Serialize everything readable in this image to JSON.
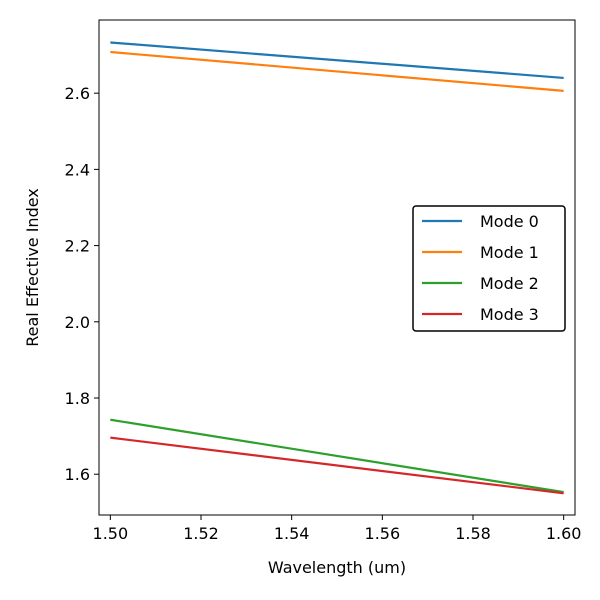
{
  "chart_data": {
    "type": "line",
    "title": "",
    "xlabel": "Wavelength (um)",
    "ylabel": "Real Effective Index",
    "xlim": [
      1.4975,
      1.6025
    ],
    "ylim": [
      1.493,
      2.792
    ],
    "xticks": [
      1.5,
      1.52,
      1.54,
      1.56,
      1.58,
      1.6
    ],
    "xtick_labels": [
      "1.50",
      "1.52",
      "1.54",
      "1.56",
      "1.58",
      "1.60"
    ],
    "yticks": [
      1.6,
      1.8,
      2.0,
      2.2,
      2.4,
      2.6
    ],
    "ytick_labels": [
      "1.6",
      "1.8",
      "2.0",
      "2.2",
      "2.4",
      "2.6"
    ],
    "grid": false,
    "legend": "center-right",
    "x": [
      1.5,
      1.6
    ],
    "series": [
      {
        "name": "Mode 0",
        "color": "#1f77b4",
        "values": [
          2.733,
          2.64
        ]
      },
      {
        "name": "Mode 1",
        "color": "#ff7f0e",
        "values": [
          2.708,
          2.606
        ]
      },
      {
        "name": "Mode 2",
        "color": "#2ca02c",
        "values": [
          1.743,
          1.553
        ]
      },
      {
        "name": "Mode 3",
        "color": "#d62728",
        "values": [
          1.696,
          1.55
        ]
      }
    ]
  }
}
